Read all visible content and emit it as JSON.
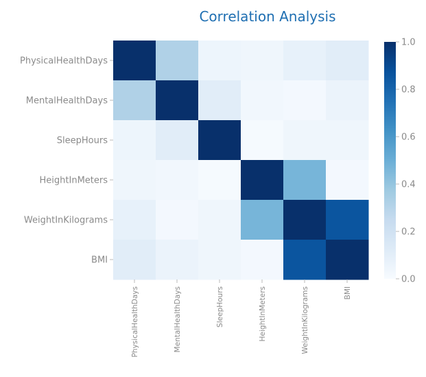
{
  "chart_data": {
    "type": "heatmap",
    "title": "Correlation Analysis",
    "variables": [
      "PhysicalHealthDays",
      "MentalHealthDays",
      "SleepHours",
      "HeightInMeters",
      "WeightInKilograms",
      "BMI"
    ],
    "values": [
      [
        1.0,
        0.32,
        0.05,
        0.04,
        0.08,
        0.11
      ],
      [
        0.32,
        1.0,
        0.11,
        0.03,
        0.02,
        0.06
      ],
      [
        0.05,
        0.11,
        1.0,
        0.01,
        0.04,
        0.04
      ],
      [
        0.04,
        0.03,
        0.01,
        1.0,
        0.47,
        0.02
      ],
      [
        0.08,
        0.02,
        0.04,
        0.47,
        1.0,
        0.86
      ],
      [
        0.11,
        0.06,
        0.04,
        0.02,
        0.86,
        1.0
      ]
    ],
    "colorbar": {
      "range": [
        0,
        1
      ],
      "ticks": [
        "0.0",
        "0.2",
        "0.4",
        "0.6",
        "0.8",
        "1.0"
      ],
      "colormap": "Blues"
    },
    "legend": "right",
    "grid": false
  }
}
